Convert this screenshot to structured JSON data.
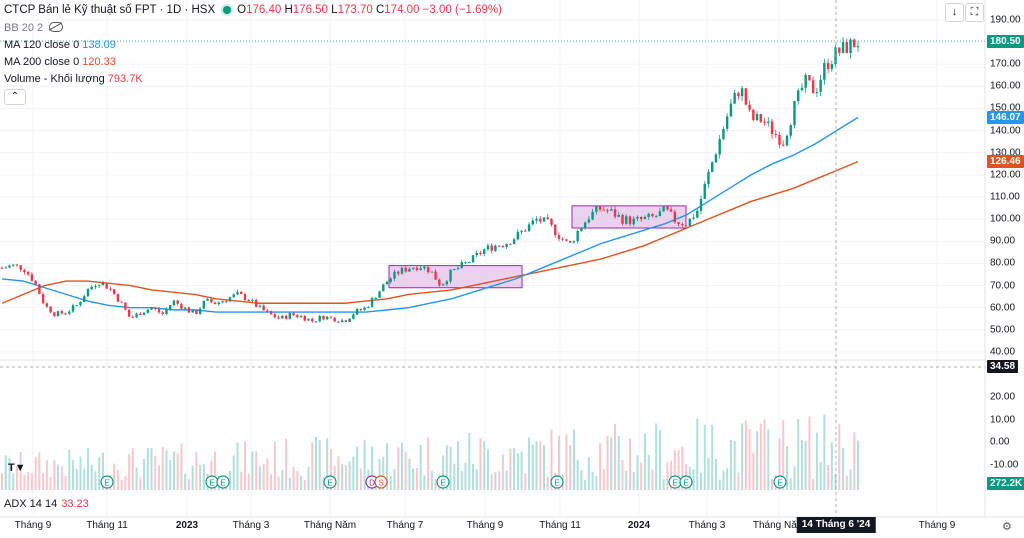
{
  "header": {
    "symbol_title": "CTCP Bán lẻ Kỹ thuật số FPT · 1D · HSX",
    "open_label": "O",
    "open": "176.40",
    "high_label": "H",
    "high": "176.50",
    "low_label": "L",
    "low": "173.70",
    "close_label": "C",
    "close": "174.00",
    "change": "−3.00 (−1.69%)"
  },
  "indicators": {
    "bb_label": "BB 20 2",
    "ma120_label": "MA 120 close 0",
    "ma120_value": "138.09",
    "ma200_label": "MA 200 close 0",
    "ma200_value": "120.33",
    "volume_label": "Volume - Khối lượng",
    "volume_value": "793.7K"
  },
  "adx": {
    "label": "ADX 14 14",
    "value": "33.23"
  },
  "toolbar": {
    "down_icon": "↓",
    "maximize_icon": "⛶",
    "collapse_icon": "⌃"
  },
  "price_tags": {
    "last": "180.50",
    "ma120": "146.07",
    "ma200": "126.46",
    "crosshair": "34.58",
    "volume": "272.2K"
  },
  "colors": {
    "up": "#089981",
    "down": "#f23645",
    "ma120": "#2196f3",
    "ma200": "#e4511e",
    "box_fill": "#e1bee7",
    "box_stroke": "#9c27b0"
  },
  "chart_data": {
    "type": "candlestick",
    "y_ticks": [
      "190.00",
      "180.00",
      "170.00",
      "160.00",
      "150.00",
      "140.00",
      "130.00",
      "120.00",
      "110.00",
      "100.00",
      "90.00",
      "80.00",
      "70.00",
      "60.00",
      "50.00",
      "40.00"
    ],
    "adx_ticks": [
      "20.00",
      "10.00",
      "0.00",
      "-10.00"
    ],
    "x_ticks": [
      "Tháng 9",
      "Tháng 11",
      "2023",
      "Tháng 3",
      "Tháng Năm",
      "Tháng 7",
      "Tháng 9",
      "Tháng 11",
      "2024",
      "Tháng 3",
      "Tháng Năm",
      "Tháng 9"
    ],
    "crosshair_date": "14 Tháng 6 '24",
    "close_path": [
      78,
      79,
      78,
      72,
      61,
      57,
      58,
      61,
      68,
      72,
      69,
      63,
      55,
      58,
      60,
      57,
      63,
      60,
      57,
      63,
      62,
      64,
      66,
      64,
      60,
      57,
      55,
      57,
      56,
      54,
      56,
      55,
      54,
      58,
      60,
      66,
      72,
      76,
      78,
      79,
      77,
      70,
      76,
      79,
      82,
      86,
      88,
      89,
      92,
      96,
      100,
      98,
      93,
      88,
      96,
      102,
      105,
      103,
      100,
      99,
      100,
      101,
      104,
      99,
      98,
      104,
      120,
      135,
      150,
      160,
      145,
      145,
      140,
      135,
      150,
      162,
      158,
      170,
      175,
      178,
      180
    ],
    "ma120_path": [
      73,
      72,
      69,
      66,
      63,
      61,
      60,
      60,
      59,
      59,
      58,
      58,
      58,
      58,
      58,
      58,
      58,
      58,
      59,
      60,
      62,
      64,
      67,
      70,
      73,
      77,
      81,
      85,
      89,
      92,
      95,
      98,
      102,
      108,
      114,
      120,
      125,
      129,
      134,
      140,
      146
    ],
    "ma200_path": [
      62,
      66,
      70,
      72,
      72,
      71,
      70,
      68,
      67,
      66,
      64,
      63,
      62,
      62,
      62,
      62,
      62,
      63,
      64,
      66,
      67,
      68,
      70,
      72,
      74,
      76,
      78,
      80,
      82,
      85,
      88,
      92,
      96,
      100,
      104,
      108,
      111,
      114,
      118,
      122,
      126
    ],
    "boxes": [
      {
        "x_start": "Tháng 7",
        "x_end": "Tháng 9",
        "y_low": 69,
        "y_high": 79
      },
      {
        "x_start": "Tháng 11",
        "x_end": "2024",
        "y_low": 96,
        "y_high": 106
      }
    ],
    "event_markers": [
      "E",
      "E",
      "E",
      "E",
      "D",
      "S",
      "E",
      "E",
      "E",
      "E",
      "E"
    ],
    "ylim": [
      34,
      195
    ]
  }
}
